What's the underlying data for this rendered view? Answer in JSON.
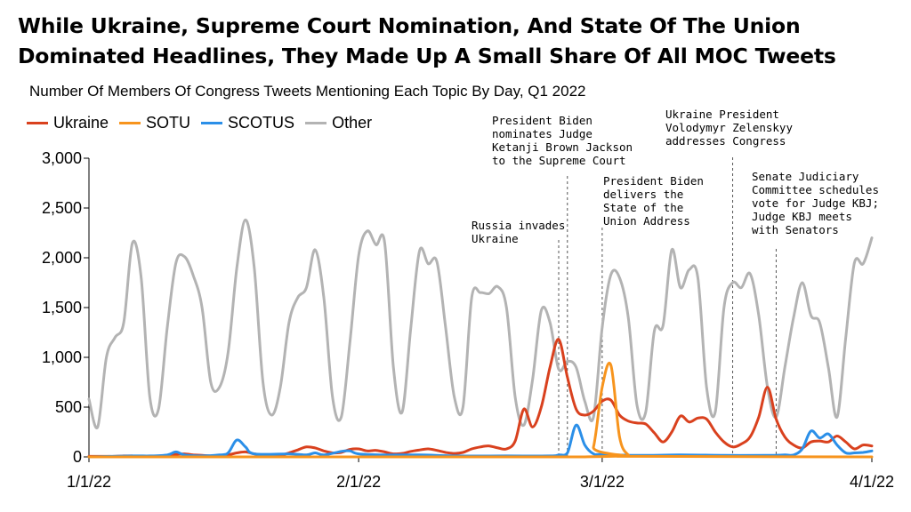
{
  "chart_data": {
    "type": "line",
    "title": "While Ukraine, Supreme Court Nomination, And State Of The Union Dominated Headlines, They Made Up A Small Share Of All MOC Tweets",
    "subtitle": "Number Of Members Of Congress Tweets Mentioning Each Topic By Day, Q1 2022",
    "xlabel": "",
    "ylabel": "",
    "x_start": "2022-01-01",
    "x_end": "2022-04-01",
    "xticks": [
      "1/1/22",
      "2/1/22",
      "3/1/22",
      "4/1/22"
    ],
    "ylim": [
      0,
      3000
    ],
    "yticks": [
      "0",
      "500",
      "1,000",
      "1,500",
      "2,000",
      "2,500",
      "3,000"
    ],
    "legend_position": "top-left",
    "grid": false,
    "series": [
      {
        "name": "Ukraine",
        "color": "#d9411e",
        "points": [
          [
            "2022-01-01",
            5
          ],
          [
            "2022-01-02",
            5
          ],
          [
            "2022-01-03",
            5
          ],
          [
            "2022-01-04",
            5
          ],
          [
            "2022-01-05",
            10
          ],
          [
            "2022-01-06",
            10
          ],
          [
            "2022-01-07",
            8
          ],
          [
            "2022-01-08",
            5
          ],
          [
            "2022-01-09",
            5
          ],
          [
            "2022-01-10",
            15
          ],
          [
            "2022-01-11",
            25
          ],
          [
            "2022-01-12",
            30
          ],
          [
            "2022-01-13",
            20
          ],
          [
            "2022-01-14",
            15
          ],
          [
            "2022-01-15",
            10
          ],
          [
            "2022-01-16",
            10
          ],
          [
            "2022-01-17",
            20
          ],
          [
            "2022-01-18",
            40
          ],
          [
            "2022-01-19",
            50
          ],
          [
            "2022-01-20",
            30
          ],
          [
            "2022-01-21",
            20
          ],
          [
            "2022-01-22",
            15
          ],
          [
            "2022-01-23",
            15
          ],
          [
            "2022-01-24",
            40
          ],
          [
            "2022-01-25",
            70
          ],
          [
            "2022-01-26",
            100
          ],
          [
            "2022-01-27",
            90
          ],
          [
            "2022-01-28",
            60
          ],
          [
            "2022-01-29",
            40
          ],
          [
            "2022-01-30",
            45
          ],
          [
            "2022-01-31",
            75
          ],
          [
            "2022-02-01",
            80
          ],
          [
            "2022-02-02",
            60
          ],
          [
            "2022-02-03",
            65
          ],
          [
            "2022-02-04",
            50
          ],
          [
            "2022-02-05",
            30
          ],
          [
            "2022-02-06",
            35
          ],
          [
            "2022-02-07",
            55
          ],
          [
            "2022-02-08",
            70
          ],
          [
            "2022-02-09",
            80
          ],
          [
            "2022-02-10",
            65
          ],
          [
            "2022-02-11",
            45
          ],
          [
            "2022-02-12",
            35
          ],
          [
            "2022-02-13",
            45
          ],
          [
            "2022-02-14",
            80
          ],
          [
            "2022-02-15",
            100
          ],
          [
            "2022-02-16",
            110
          ],
          [
            "2022-02-17",
            90
          ],
          [
            "2022-02-18",
            80
          ],
          [
            "2022-02-19",
            160
          ],
          [
            "2022-02-20",
            480
          ],
          [
            "2022-02-21",
            300
          ],
          [
            "2022-02-22",
            500
          ],
          [
            "2022-02-23",
            900
          ],
          [
            "2022-02-24",
            1180
          ],
          [
            "2022-02-25",
            800
          ],
          [
            "2022-02-26",
            480
          ],
          [
            "2022-02-27",
            420
          ],
          [
            "2022-02-28",
            460
          ],
          [
            "2022-03-01",
            560
          ],
          [
            "2022-03-02",
            570
          ],
          [
            "2022-03-03",
            420
          ],
          [
            "2022-03-04",
            360
          ],
          [
            "2022-03-05",
            340
          ],
          [
            "2022-03-06",
            330
          ],
          [
            "2022-03-07",
            240
          ],
          [
            "2022-03-08",
            150
          ],
          [
            "2022-03-09",
            250
          ],
          [
            "2022-03-10",
            410
          ],
          [
            "2022-03-11",
            350
          ],
          [
            "2022-03-12",
            390
          ],
          [
            "2022-03-13",
            380
          ],
          [
            "2022-03-14",
            250
          ],
          [
            "2022-03-15",
            150
          ],
          [
            "2022-03-16",
            100
          ],
          [
            "2022-03-17",
            130
          ],
          [
            "2022-03-18",
            200
          ],
          [
            "2022-03-19",
            400
          ],
          [
            "2022-03-20",
            700
          ],
          [
            "2022-03-21",
            380
          ],
          [
            "2022-03-22",
            200
          ],
          [
            "2022-03-23",
            120
          ],
          [
            "2022-03-24",
            90
          ],
          [
            "2022-03-25",
            150
          ],
          [
            "2022-03-26",
            160
          ],
          [
            "2022-03-27",
            150
          ],
          [
            "2022-03-28",
            210
          ],
          [
            "2022-03-29",
            150
          ],
          [
            "2022-03-30",
            80
          ],
          [
            "2022-03-31",
            120
          ],
          [
            "2022-04-01",
            110
          ]
        ]
      },
      {
        "name": "SOTU",
        "color": "#f7941d",
        "points": [
          [
            "2022-01-01",
            0
          ],
          [
            "2022-02-27",
            0
          ],
          [
            "2022-02-28",
            100
          ],
          [
            "2022-03-01",
            700
          ],
          [
            "2022-03-02",
            920
          ],
          [
            "2022-03-03",
            200
          ],
          [
            "2022-03-04",
            20
          ],
          [
            "2022-03-05",
            5
          ],
          [
            "2022-04-01",
            0
          ]
        ]
      },
      {
        "name": "SCOTUS",
        "color": "#2b8fe8",
        "points": [
          [
            "2022-01-01",
            0
          ],
          [
            "2022-01-06",
            10
          ],
          [
            "2022-01-08",
            10
          ],
          [
            "2022-01-10",
            20
          ],
          [
            "2022-01-11",
            50
          ],
          [
            "2022-01-12",
            20
          ],
          [
            "2022-01-14",
            10
          ],
          [
            "2022-01-16",
            20
          ],
          [
            "2022-01-17",
            40
          ],
          [
            "2022-01-18",
            170
          ],
          [
            "2022-01-19",
            100
          ],
          [
            "2022-01-20",
            30
          ],
          [
            "2022-01-24",
            30
          ],
          [
            "2022-01-26",
            20
          ],
          [
            "2022-01-27",
            40
          ],
          [
            "2022-01-28",
            20
          ],
          [
            "2022-01-30",
            55
          ],
          [
            "2022-01-31",
            60
          ],
          [
            "2022-02-01",
            30
          ],
          [
            "2022-02-04",
            20
          ],
          [
            "2022-02-08",
            20
          ],
          [
            "2022-02-12",
            10
          ],
          [
            "2022-02-18",
            10
          ],
          [
            "2022-02-23",
            10
          ],
          [
            "2022-02-24",
            20
          ],
          [
            "2022-02-25",
            40
          ],
          [
            "2022-02-26",
            320
          ],
          [
            "2022-02-27",
            120
          ],
          [
            "2022-02-28",
            30
          ],
          [
            "2022-03-01",
            25
          ],
          [
            "2022-03-05",
            15
          ],
          [
            "2022-03-10",
            20
          ],
          [
            "2022-03-15",
            15
          ],
          [
            "2022-03-20",
            15
          ],
          [
            "2022-03-22",
            20
          ],
          [
            "2022-03-23",
            20
          ],
          [
            "2022-03-24",
            80
          ],
          [
            "2022-03-25",
            260
          ],
          [
            "2022-03-26",
            190
          ],
          [
            "2022-03-27",
            230
          ],
          [
            "2022-03-28",
            120
          ],
          [
            "2022-03-29",
            40
          ],
          [
            "2022-03-30",
            40
          ],
          [
            "2022-03-31",
            45
          ],
          [
            "2022-04-01",
            60
          ]
        ]
      },
      {
        "name": "Other",
        "color": "#b3b3b3",
        "points": [
          [
            "2022-01-01",
            580
          ],
          [
            "2022-01-02",
            300
          ],
          [
            "2022-01-03",
            1000
          ],
          [
            "2022-01-04",
            1200
          ],
          [
            "2022-01-05",
            1350
          ],
          [
            "2022-01-06",
            2150
          ],
          [
            "2022-01-07",
            1800
          ],
          [
            "2022-01-08",
            600
          ],
          [
            "2022-01-09",
            480
          ],
          [
            "2022-01-10",
            1300
          ],
          [
            "2022-01-11",
            1950
          ],
          [
            "2022-01-12",
            2010
          ],
          [
            "2022-01-13",
            1820
          ],
          [
            "2022-01-14",
            1500
          ],
          [
            "2022-01-15",
            750
          ],
          [
            "2022-01-16",
            700
          ],
          [
            "2022-01-17",
            1050
          ],
          [
            "2022-01-18",
            1900
          ],
          [
            "2022-01-19",
            2380
          ],
          [
            "2022-01-20",
            1900
          ],
          [
            "2022-01-21",
            750
          ],
          [
            "2022-01-22",
            420
          ],
          [
            "2022-01-23",
            700
          ],
          [
            "2022-01-24",
            1350
          ],
          [
            "2022-01-25",
            1600
          ],
          [
            "2022-01-26",
            1700
          ],
          [
            "2022-01-27",
            2080
          ],
          [
            "2022-01-28",
            1600
          ],
          [
            "2022-01-29",
            600
          ],
          [
            "2022-01-30",
            400
          ],
          [
            "2022-01-31",
            1150
          ],
          [
            "2022-02-01",
            2020
          ],
          [
            "2022-02-02",
            2270
          ],
          [
            "2022-02-03",
            2130
          ],
          [
            "2022-02-04",
            2150
          ],
          [
            "2022-02-05",
            900
          ],
          [
            "2022-02-06",
            450
          ],
          [
            "2022-02-07",
            1300
          ],
          [
            "2022-02-08",
            2070
          ],
          [
            "2022-02-09",
            1940
          ],
          [
            "2022-02-10",
            1960
          ],
          [
            "2022-02-11",
            1300
          ],
          [
            "2022-02-12",
            600
          ],
          [
            "2022-02-13",
            500
          ],
          [
            "2022-02-14",
            1600
          ],
          [
            "2022-02-15",
            1650
          ],
          [
            "2022-02-16",
            1640
          ],
          [
            "2022-02-17",
            1710
          ],
          [
            "2022-02-18",
            1500
          ],
          [
            "2022-02-19",
            600
          ],
          [
            "2022-02-20",
            320
          ],
          [
            "2022-02-21",
            780
          ],
          [
            "2022-02-22",
            1470
          ],
          [
            "2022-02-23",
            1350
          ],
          [
            "2022-02-24",
            880
          ],
          [
            "2022-02-25",
            960
          ],
          [
            "2022-02-26",
            900
          ],
          [
            "2022-02-27",
            560
          ],
          [
            "2022-02-28",
            400
          ],
          [
            "2022-03-01",
            1300
          ],
          [
            "2022-03-02",
            1830
          ],
          [
            "2022-03-03",
            1800
          ],
          [
            "2022-03-04",
            1400
          ],
          [
            "2022-03-05",
            520
          ],
          [
            "2022-03-06",
            450
          ],
          [
            "2022-03-07",
            1270
          ],
          [
            "2022-03-08",
            1320
          ],
          [
            "2022-03-09",
            2080
          ],
          [
            "2022-03-10",
            1700
          ],
          [
            "2022-03-11",
            1880
          ],
          [
            "2022-03-12",
            1800
          ],
          [
            "2022-03-13",
            700
          ],
          [
            "2022-03-14",
            450
          ],
          [
            "2022-03-15",
            1500
          ],
          [
            "2022-03-16",
            1750
          ],
          [
            "2022-03-17",
            1700
          ],
          [
            "2022-03-18",
            1840
          ],
          [
            "2022-03-19",
            1420
          ],
          [
            "2022-03-20",
            700
          ],
          [
            "2022-03-21",
            400
          ],
          [
            "2022-03-22",
            900
          ],
          [
            "2022-03-23",
            1400
          ],
          [
            "2022-03-24",
            1750
          ],
          [
            "2022-03-25",
            1420
          ],
          [
            "2022-03-26",
            1350
          ],
          [
            "2022-03-27",
            900
          ],
          [
            "2022-03-28",
            400
          ],
          [
            "2022-03-29",
            1200
          ],
          [
            "2022-03-30",
            1950
          ],
          [
            "2022-03-31",
            1940
          ],
          [
            "2022-04-01",
            2200
          ]
        ]
      }
    ],
    "annotations": [
      {
        "date": "2022-02-24",
        "lines": [
          "Russia invades",
          "Ukraine"
        ]
      },
      {
        "date": "2022-02-25",
        "lines": [
          "President Biden",
          "nominates Judge",
          "Ketanji Brown Jackson",
          "to the Supreme Court"
        ]
      },
      {
        "date": "2022-03-01",
        "lines": [
          "President Biden",
          "delivers the",
          "State of the",
          "Union Address"
        ]
      },
      {
        "date": "2022-03-16",
        "lines": [
          "Ukraine President",
          "Volodymyr Zelenskyy",
          "addresses Congress"
        ]
      },
      {
        "date": "2022-03-21",
        "lines": [
          "Senate Judiciary",
          "Committee schedules",
          "vote for Judge KBJ;",
          "Judge KBJ meets",
          "with Senators"
        ]
      }
    ]
  }
}
